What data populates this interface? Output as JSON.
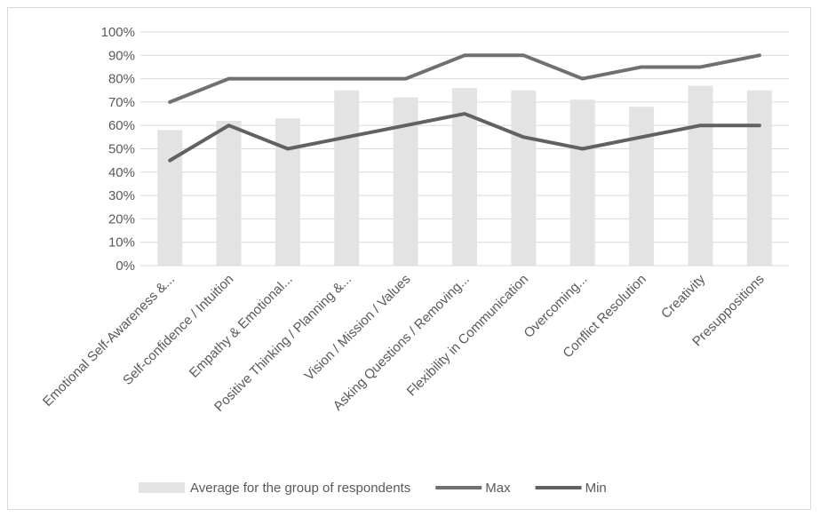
{
  "chart_data": {
    "type": "bar",
    "categories": [
      "Emotional Self-Awareness &...",
      "Self-confidence / Intuition",
      "Empathy & Emotional...",
      "Positive Thinking / Planning &...",
      "Vision / Mission / Values",
      "Asking Questions / Removing...",
      "Flexibility in Communication",
      "Overcoming...",
      "Conflict Resolution",
      "Creativity",
      "Presuppositions"
    ],
    "series": [
      {
        "name": "Average for the group of respondents",
        "kind": "bar",
        "color": "#e3e3e3",
        "values": [
          58,
          62,
          63,
          75,
          72,
          76,
          75,
          71,
          68,
          77,
          75
        ]
      },
      {
        "name": "Max",
        "kind": "line",
        "color": "#707070",
        "values": [
          70,
          80,
          80,
          80,
          80,
          90,
          90,
          80,
          85,
          85,
          90
        ]
      },
      {
        "name": "Min",
        "kind": "line",
        "color": "#616161",
        "values": [
          45,
          60,
          50,
          55,
          60,
          65,
          55,
          50,
          55,
          60,
          60
        ]
      }
    ],
    "yaxis": {
      "min": 0,
      "max": 100,
      "step": 10,
      "tick_labels": [
        "0%",
        "10%",
        "20%",
        "30%",
        "40%",
        "50%",
        "60%",
        "70%",
        "80%",
        "90%",
        "100%"
      ]
    },
    "grid": true,
    "legend_position": "bottom",
    "title": "",
    "xlabel": "",
    "ylabel": ""
  }
}
